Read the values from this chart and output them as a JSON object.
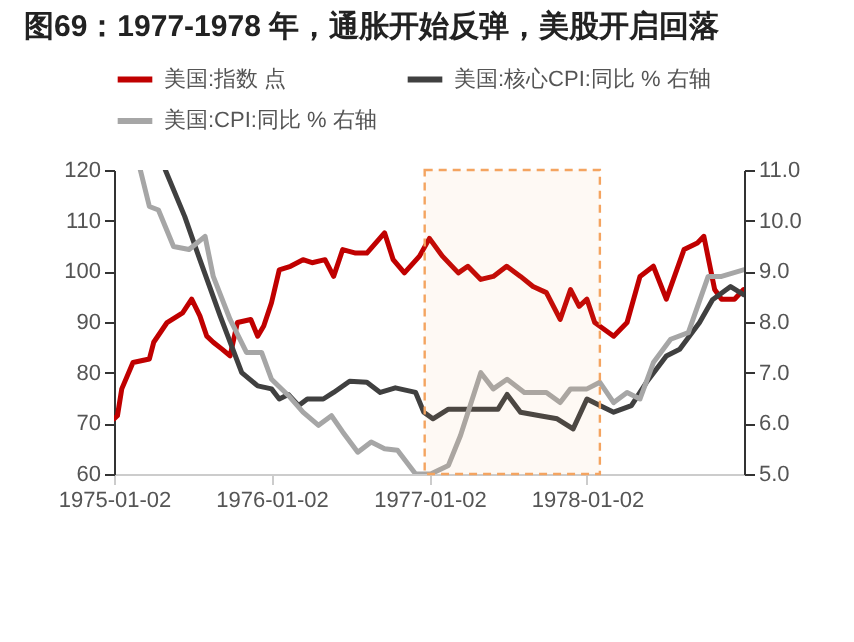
{
  "chart_data": {
    "type": "line",
    "title": "图69：1977-1978 年，通胀开始反弹，美股开启回落",
    "xlim": [
      "1975-01-02",
      "1979-01-01"
    ],
    "xticks": [
      "1975-01-02",
      "1976-01-02",
      "1977-01-02",
      "1978-01-02"
    ],
    "ylim": [
      60,
      120
    ],
    "yticks": [
      60,
      70,
      80,
      90,
      100,
      110,
      120
    ],
    "y2lim": [
      5,
      11
    ],
    "y2ticks": [
      {
        "value": 5,
        "label": "5.0"
      },
      {
        "value": 6,
        "label": "6.0"
      },
      {
        "value": 7,
        "label": "7.0"
      },
      {
        "value": 8,
        "label": "8.0"
      },
      {
        "value": 9,
        "label": "9.0"
      },
      {
        "value": 10,
        "label": "10.0"
      },
      {
        "value": 11,
        "label": "11.0"
      }
    ],
    "legend": "top",
    "grid": false,
    "bands": [
      {
        "axis": "x",
        "from": "1976-12-22",
        "to": "1978-02-01",
        "color": "#f4a460"
      }
    ],
    "series": [
      {
        "name": "美国:指数 点",
        "color": "#c00000",
        "x": [
          "1975-01-02",
          "1975-01-10",
          "1975-01-20",
          "1975-02-15",
          "1975-03-25",
          "1975-04-04",
          "1975-05-05",
          "1975-06-10",
          "1975-07-01",
          "1975-07-20",
          "1975-08-05",
          "1975-08-20",
          "1975-09-10",
          "1975-09-28",
          "1975-10-15",
          "1975-11-15",
          "1975-12-01",
          "1975-12-15",
          "1976-01-02",
          "1976-01-20",
          "1976-02-15",
          "1976-03-15",
          "1976-04-05",
          "1976-05-05",
          "1976-05-25",
          "1976-06-15",
          "1976-07-15",
          "1976-08-10",
          "1976-09-20",
          "1976-10-10",
          "1976-11-05",
          "1976-12-10",
          "1977-01-02",
          "1977-02-01",
          "1977-03-10",
          "1977-04-01",
          "1977-05-01",
          "1977-05-30",
          "1977-06-30",
          "1977-08-01",
          "1977-08-30",
          "1977-09-30",
          "1977-11-01",
          "1977-11-25",
          "1977-12-15",
          "1978-01-02",
          "1978-01-20",
          "1978-03-05",
          "1978-04-05",
          "1978-05-05",
          "1978-06-05",
          "1978-07-05",
          "1978-08-15",
          "1978-09-15",
          "1978-09-30",
          "1978-10-25",
          "1978-11-10",
          "1978-12-10",
          "1978-12-31"
        ],
        "values": [
          70.9,
          71.5,
          76.8,
          82,
          82.7,
          86,
          89.9,
          91.8,
          94.5,
          91.2,
          87.2,
          86,
          84.6,
          83.3,
          89.9,
          90.5,
          87.2,
          89.2,
          93.8,
          100.3,
          101,
          102.3,
          101.7,
          102.3,
          99,
          104.3,
          103.6,
          103.6,
          107.6,
          102.3,
          99.7,
          103,
          106.5,
          103,
          99.7,
          101,
          98.4,
          99,
          101,
          99,
          97,
          95.8,
          90.5,
          96.4,
          93.1,
          94.5,
          89.9,
          87.2,
          89.9,
          99,
          101,
          94.5,
          104.3,
          105.6,
          106.9,
          96.4,
          94.5,
          94.5,
          96.4
        ]
      },
      {
        "name": "美国:核心CPI:同比 % 右轴",
        "color": "#404040",
        "axis": "y2",
        "x": [
          "1975-05-01",
          "1975-06-15",
          "1975-07-20",
          "1975-09-05",
          "1975-10-25",
          "1975-12-01",
          "1976-01-02",
          "1976-01-20",
          "1976-02-10",
          "1976-03-05",
          "1976-03-25",
          "1976-05-01",
          "1976-05-25",
          "1976-07-01",
          "1976-08-10",
          "1976-09-10",
          "1976-10-15",
          "1976-12-01",
          "1976-12-20",
          "1977-01-10",
          "1977-02-15",
          "1977-03-20",
          "1977-05-01",
          "1977-06-10",
          "1977-07-01",
          "1977-08-01",
          "1977-09-15",
          "1977-10-25",
          "1977-12-01",
          "1978-01-02",
          "1978-02-01",
          "1978-03-05",
          "1978-04-15",
          "1978-05-20",
          "1978-07-05",
          "1978-08-05",
          "1978-09-20",
          "1978-10-20",
          "1978-12-01",
          "1978-12-31"
        ],
        "values": [
          11,
          10.08,
          9.23,
          8.12,
          7,
          6.74,
          6.68,
          6.48,
          6.57,
          6.35,
          6.48,
          6.48,
          6.61,
          6.83,
          6.81,
          6.61,
          6.7,
          6.61,
          6.22,
          6.09,
          6.28,
          6.28,
          6.28,
          6.28,
          6.57,
          6.22,
          6.15,
          6.09,
          5.89,
          6.48,
          6.35,
          6.22,
          6.35,
          6.81,
          7.33,
          7.46,
          7.99,
          8.44,
          8.7,
          8.54
        ]
      },
      {
        "name": "美国:CPI:同比 % 右轴",
        "color": "#a6a6a6",
        "axis": "y2",
        "x": [
          "1975-03-04",
          "1975-03-25",
          "1975-04-15",
          "1975-05-20",
          "1975-06-25",
          "1975-08-01",
          "1975-08-20",
          "1975-09-28",
          "1975-11-05",
          "1975-12-10",
          "1976-01-02",
          "1976-02-10",
          "1976-03-15",
          "1976-04-20",
          "1976-05-20",
          "1976-06-15",
          "1976-07-20",
          "1976-08-20",
          "1976-09-20",
          "1976-10-20",
          "1976-12-01",
          "1977-01-05",
          "1977-02-15",
          "1977-03-15",
          "1977-05-01",
          "1977-05-30",
          "1977-07-01",
          "1977-08-10",
          "1977-09-30",
          "1977-11-01",
          "1977-11-25",
          "1978-01-02",
          "1978-02-01",
          "1978-03-05",
          "1978-04-05",
          "1978-05-05",
          "1978-06-05",
          "1978-07-15",
          "1978-08-25",
          "1978-10-10",
          "1978-11-10",
          "1978-12-31"
        ],
        "values": [
          11,
          10.28,
          10.21,
          9.49,
          9.43,
          9.69,
          8.9,
          8.05,
          7.4,
          7.4,
          6.87,
          6.55,
          6.22,
          5.96,
          6.15,
          5.83,
          5.43,
          5.63,
          5.5,
          5.47,
          5,
          5,
          5.17,
          5.76,
          7,
          6.68,
          6.87,
          6.61,
          6.61,
          6.41,
          6.68,
          6.68,
          6.81,
          6.41,
          6.61,
          6.48,
          7.2,
          7.66,
          7.79,
          8.9,
          8.9,
          9.03
        ]
      }
    ]
  }
}
